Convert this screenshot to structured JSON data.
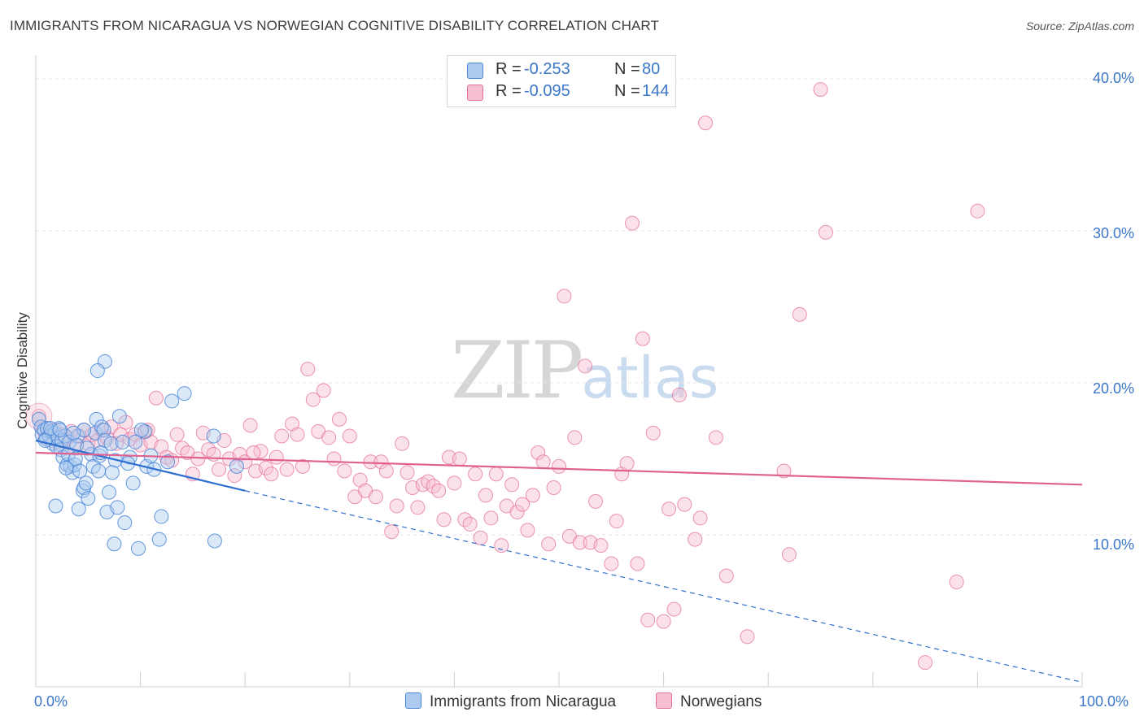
{
  "header": {
    "title": "IMMIGRANTS FROM NICARAGUA VS NORWEGIAN COGNITIVE DISABILITY CORRELATION CHART",
    "source": "Source: ZipAtlas.com"
  },
  "watermark": {
    "zip": "ZIP",
    "atlas": "atlas"
  },
  "colors": {
    "blue": "#4a86d8",
    "blue_fill": "#aecbef",
    "blue_line": "#2f6fcf",
    "pink": "#e4709a",
    "pink_fill": "#f6bfd1",
    "pink_line": "#e0608f",
    "tick_text": "#3a76c9",
    "grid": "#e6e6e6"
  },
  "legend": {
    "rows": [
      {
        "r_label": "R =",
        "r_value": "-0.253",
        "n_label": "N =",
        "n_value": "80",
        "color": "#aecbef"
      },
      {
        "r_label": "R =",
        "r_value": "-0.095",
        "n_label": "N =",
        "n_value": "144",
        "color": "#f6bfd1"
      }
    ]
  },
  "bottom_legend": {
    "series_a": "Immigrants from Nicaragua",
    "series_b": "Norwegians"
  },
  "chart_data": {
    "type": "scatter",
    "title": "IMMIGRANTS FROM NICARAGUA VS NORWEGIAN COGNITIVE DISABILITY CORRELATION CHART",
    "xlabel": "",
    "ylabel": "Cognitive Disability",
    "xlim": [
      0,
      100
    ],
    "ylim": [
      0,
      40.8
    ],
    "x_tick_labels": [
      "0.0%",
      "100.0%"
    ],
    "y_ticks": [
      10,
      20,
      30,
      40
    ],
    "y_tick_labels": [
      "10.0%",
      "20.0%",
      "30.0%",
      "40.0%"
    ],
    "grid": true,
    "legend_position": "top-center",
    "series": [
      {
        "name": "Immigrants from Nicaragua",
        "color": "#4a86d8",
        "R": -0.253,
        "N": 80,
        "trend": {
          "x": [
            0,
            20
          ],
          "y": [
            16.2,
            12.9
          ],
          "dashed_extension": {
            "x": [
              20,
              100
            ],
            "y": [
              12.9,
              0.3
            ]
          }
        },
        "points": [
          [
            0.3,
            17.6
          ],
          [
            0.5,
            17.1
          ],
          [
            0.6,
            16.6
          ],
          [
            0.8,
            16.9
          ],
          [
            1.0,
            16.3
          ],
          [
            1.1,
            17.0
          ],
          [
            1.3,
            16.5
          ],
          [
            1.5,
            16.8
          ],
          [
            1.6,
            16.0
          ],
          [
            1.8,
            16.7
          ],
          [
            2.0,
            15.8
          ],
          [
            2.1,
            16.4
          ],
          [
            2.2,
            17.0
          ],
          [
            2.4,
            15.6
          ],
          [
            2.5,
            16.2
          ],
          [
            2.6,
            15.1
          ],
          [
            2.8,
            16.5
          ],
          [
            3.0,
            14.6
          ],
          [
            3.1,
            15.3
          ],
          [
            3.2,
            16.1
          ],
          [
            3.3,
            14.5
          ],
          [
            3.5,
            14.1
          ],
          [
            3.7,
            14.6
          ],
          [
            3.8,
            15.0
          ],
          [
            4.0,
            16.5
          ],
          [
            4.1,
            11.7
          ],
          [
            4.2,
            14.2
          ],
          [
            4.5,
            12.9
          ],
          [
            4.6,
            13.1
          ],
          [
            4.8,
            13.4
          ],
          [
            5.0,
            12.4
          ],
          [
            5.3,
            15.3
          ],
          [
            5.5,
            14.5
          ],
          [
            5.7,
            16.7
          ],
          [
            5.8,
            17.6
          ],
          [
            6.0,
            14.2
          ],
          [
            6.1,
            15.2
          ],
          [
            6.3,
            17.1
          ],
          [
            6.5,
            16.9
          ],
          [
            6.6,
            16.2
          ],
          [
            6.8,
            11.5
          ],
          [
            7.0,
            12.8
          ],
          [
            7.2,
            16.0
          ],
          [
            7.5,
            9.4
          ],
          [
            7.6,
            14.9
          ],
          [
            7.8,
            11.8
          ],
          [
            8.0,
            17.8
          ],
          [
            8.3,
            16.1
          ],
          [
            8.5,
            10.8
          ],
          [
            9.0,
            15.1
          ],
          [
            9.3,
            13.4
          ],
          [
            9.5,
            16.1
          ],
          [
            9.8,
            9.1
          ],
          [
            10.4,
            16.8
          ],
          [
            10.6,
            14.5
          ],
          [
            11.0,
            15.2
          ],
          [
            11.3,
            14.3
          ],
          [
            11.8,
            9.7
          ],
          [
            12.0,
            11.2
          ],
          [
            12.6,
            14.8
          ],
          [
            13.0,
            18.8
          ],
          [
            14.2,
            19.3
          ],
          [
            6.6,
            21.4
          ],
          [
            5.9,
            20.8
          ],
          [
            4.6,
            16.9
          ],
          [
            3.9,
            15.9
          ],
          [
            2.9,
            14.4
          ],
          [
            1.9,
            11.9
          ],
          [
            1.4,
            17.0
          ],
          [
            0.9,
            16.2
          ],
          [
            2.3,
            16.9
          ],
          [
            3.6,
            16.7
          ],
          [
            4.9,
            15.7
          ],
          [
            6.2,
            15.4
          ],
          [
            7.3,
            14.1
          ],
          [
            8.8,
            14.7
          ],
          [
            10.1,
            16.9
          ],
          [
            17.0,
            16.5
          ],
          [
            17.1,
            9.6
          ],
          [
            19.2,
            14.5
          ]
        ]
      },
      {
        "name": "Norwegians",
        "color": "#e4709a",
        "R": -0.095,
        "N": 144,
        "trend": {
          "x": [
            0,
            100
          ],
          "y": [
            15.4,
            13.3
          ]
        },
        "points": [
          [
            0.3,
            17.8
          ],
          [
            0.6,
            17.0
          ],
          [
            0.9,
            16.4
          ],
          [
            1.2,
            16.8
          ],
          [
            1.5,
            16.2
          ],
          [
            1.8,
            16.9
          ],
          [
            2.1,
            16.1
          ],
          [
            2.4,
            15.9
          ],
          [
            2.7,
            16.6
          ],
          [
            3.0,
            16.3
          ],
          [
            3.4,
            16.8
          ],
          [
            3.8,
            15.7
          ],
          [
            4.2,
            16.5
          ],
          [
            4.6,
            16.9
          ],
          [
            5.0,
            16.0
          ],
          [
            5.4,
            16.6
          ],
          [
            5.9,
            16.2
          ],
          [
            6.3,
            16.9
          ],
          [
            6.8,
            16.4
          ],
          [
            7.2,
            17.1
          ],
          [
            7.7,
            16.0
          ],
          [
            8.1,
            16.6
          ],
          [
            8.6,
            17.4
          ],
          [
            9.0,
            16.3
          ],
          [
            9.5,
            16.6
          ],
          [
            10.0,
            15.9
          ],
          [
            10.5,
            16.8
          ],
          [
            11.0,
            16.1
          ],
          [
            11.5,
            19.0
          ],
          [
            12.0,
            15.8
          ],
          [
            12.5,
            15.1
          ],
          [
            13.0,
            14.9
          ],
          [
            13.5,
            16.6
          ],
          [
            14.0,
            15.7
          ],
          [
            14.5,
            15.4
          ],
          [
            15.0,
            14.0
          ],
          [
            15.5,
            15.0
          ],
          [
            16.0,
            16.7
          ],
          [
            16.5,
            15.6
          ],
          [
            17.0,
            15.3
          ],
          [
            17.5,
            14.3
          ],
          [
            18.0,
            16.2
          ],
          [
            18.5,
            15.0
          ],
          [
            19.0,
            13.9
          ],
          [
            19.5,
            15.3
          ],
          [
            20.0,
            14.8
          ],
          [
            20.5,
            17.2
          ],
          [
            21.0,
            14.2
          ],
          [
            21.5,
            15.5
          ],
          [
            22.0,
            14.4
          ],
          [
            22.5,
            14.0
          ],
          [
            23.0,
            15.1
          ],
          [
            23.5,
            16.5
          ],
          [
            24.0,
            14.3
          ],
          [
            24.5,
            17.3
          ],
          [
            25.0,
            16.6
          ],
          [
            25.5,
            14.5
          ],
          [
            26.0,
            20.9
          ],
          [
            26.5,
            18.9
          ],
          [
            27.0,
            16.8
          ],
          [
            27.5,
            19.5
          ],
          [
            28.0,
            16.4
          ],
          [
            28.5,
            15.0
          ],
          [
            29.0,
            17.6
          ],
          [
            29.5,
            14.2
          ],
          [
            30.0,
            16.5
          ],
          [
            30.5,
            12.5
          ],
          [
            31.0,
            13.6
          ],
          [
            31.5,
            12.9
          ],
          [
            32.0,
            14.8
          ],
          [
            32.5,
            12.5
          ],
          [
            33.0,
            14.8
          ],
          [
            33.5,
            14.2
          ],
          [
            34.0,
            10.2
          ],
          [
            34.5,
            11.9
          ],
          [
            35.0,
            16.0
          ],
          [
            35.5,
            14.1
          ],
          [
            36.0,
            13.1
          ],
          [
            36.5,
            11.8
          ],
          [
            37.0,
            13.3
          ],
          [
            37.5,
            13.5
          ],
          [
            38.0,
            13.2
          ],
          [
            38.5,
            12.9
          ],
          [
            39.0,
            11.0
          ],
          [
            39.5,
            15.1
          ],
          [
            40.0,
            13.4
          ],
          [
            40.5,
            15.0
          ],
          [
            41.0,
            11.0
          ],
          [
            41.5,
            10.7
          ],
          [
            42.0,
            14.0
          ],
          [
            42.5,
            9.8
          ],
          [
            43.0,
            12.6
          ],
          [
            43.5,
            11.1
          ],
          [
            44.0,
            14.0
          ],
          [
            44.5,
            9.3
          ],
          [
            45.0,
            11.9
          ],
          [
            45.5,
            13.3
          ],
          [
            46.0,
            11.5
          ],
          [
            46.5,
            12.0
          ],
          [
            47.0,
            10.3
          ],
          [
            47.5,
            12.6
          ],
          [
            48.0,
            15.4
          ],
          [
            48.5,
            14.8
          ],
          [
            49.0,
            9.4
          ],
          [
            49.5,
            13.1
          ],
          [
            50.0,
            14.5
          ],
          [
            50.5,
            25.7
          ],
          [
            51.0,
            9.9
          ],
          [
            51.5,
            16.4
          ],
          [
            52.0,
            9.5
          ],
          [
            52.5,
            21.1
          ],
          [
            53.0,
            9.5
          ],
          [
            53.5,
            12.2
          ],
          [
            54.0,
            9.3
          ],
          [
            55.0,
            8.1
          ],
          [
            55.5,
            10.9
          ],
          [
            56.0,
            14.0
          ],
          [
            56.5,
            14.7
          ],
          [
            57.0,
            30.5
          ],
          [
            57.5,
            8.1
          ],
          [
            58.0,
            22.9
          ],
          [
            58.5,
            4.4
          ],
          [
            59.0,
            16.7
          ],
          [
            60.0,
            4.3
          ],
          [
            60.5,
            11.7
          ],
          [
            61.0,
            5.1
          ],
          [
            61.5,
            19.2
          ],
          [
            62.0,
            12.0
          ],
          [
            63.0,
            9.7
          ],
          [
            63.5,
            11.1
          ],
          [
            64.0,
            37.1
          ],
          [
            65.0,
            16.4
          ],
          [
            66.0,
            7.3
          ],
          [
            68.0,
            3.3
          ],
          [
            71.5,
            14.2
          ],
          [
            72.0,
            8.7
          ],
          [
            73.0,
            24.5
          ],
          [
            75.0,
            39.3
          ],
          [
            75.5,
            29.9
          ],
          [
            85.0,
            1.6
          ],
          [
            88.0,
            6.9
          ],
          [
            90.0,
            31.3
          ],
          [
            20.8,
            15.4
          ],
          [
            10.7,
            16.9
          ]
        ]
      }
    ]
  }
}
